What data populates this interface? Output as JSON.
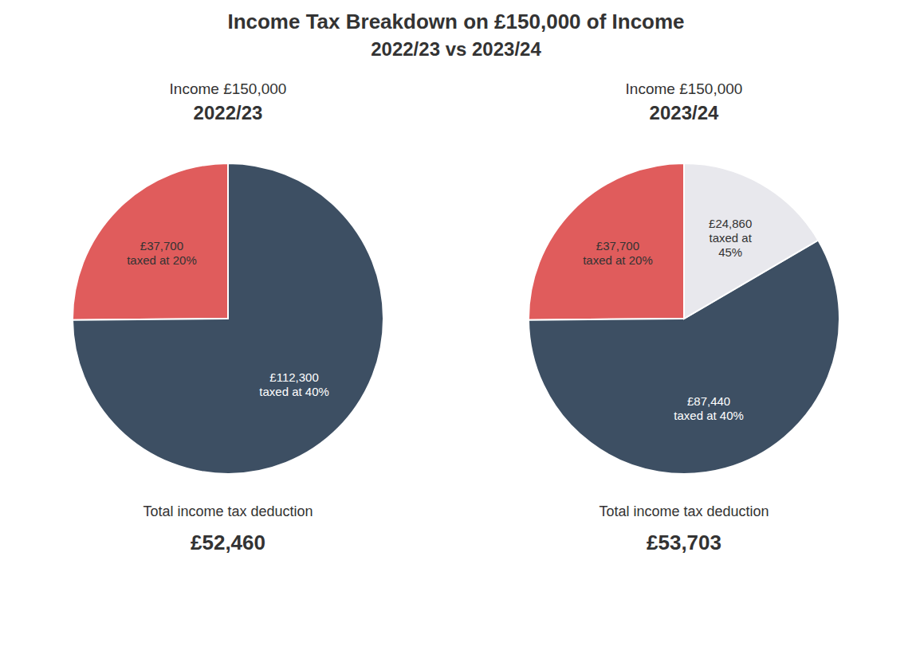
{
  "title": "Income Tax Breakdown on £150,000 of Income",
  "subtitle": "2022/23 vs 2023/24",
  "chart_data": [
    {
      "type": "pie",
      "title": "Income £150,000",
      "subtitle": "2022/23",
      "categories": [
        "£37,700\ntaxed at 20%",
        "£112,300\ntaxed at 40%"
      ],
      "values": [
        37700,
        112300
      ],
      "colors": [
        "#e05c5c",
        "#3d4f63"
      ],
      "annotations": [
        "Total income tax deduction",
        "£52,460"
      ]
    },
    {
      "type": "pie",
      "title": "Income £150,000",
      "subtitle": "2023/24",
      "categories": [
        "£37,700\ntaxed at 20%",
        "£87,440\ntaxed at 40%",
        "£24,860\ntaxed at\n45%"
      ],
      "values": [
        37700,
        87440,
        24860
      ],
      "colors": [
        "#e05c5c",
        "#3d4f63",
        "#e8e8ed"
      ],
      "annotations": [
        "Total income tax deduction",
        "£53,703"
      ]
    }
  ]
}
